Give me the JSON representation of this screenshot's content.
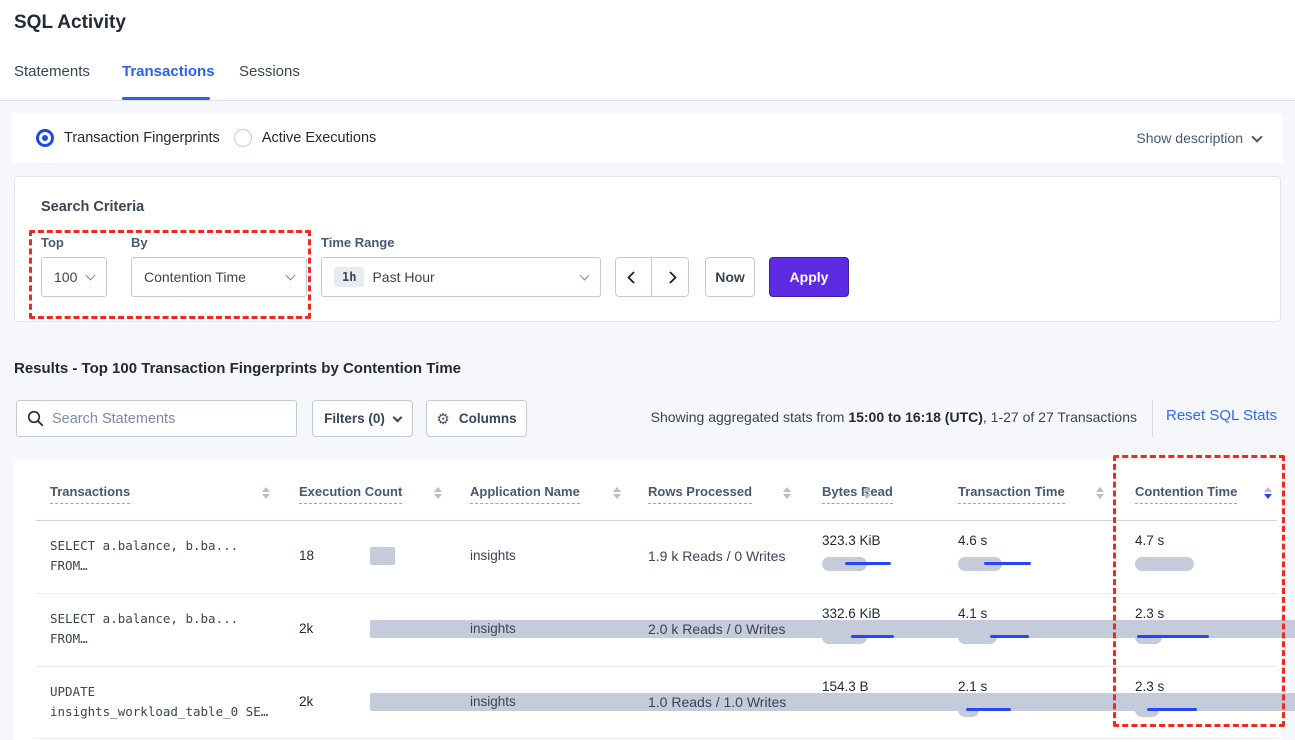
{
  "title": "SQL Activity",
  "tabs": {
    "statements": "Statements",
    "transactions": "Transactions",
    "sessions": "Sessions",
    "active": "Transactions"
  },
  "view_toggle": {
    "fingerprints": "Transaction Fingerprints",
    "active_executions": "Active Executions",
    "selected": "Transaction Fingerprints",
    "show_description": "Show description"
  },
  "search_criteria": {
    "heading": "Search Criteria",
    "top_label": "Top",
    "top_value": "100",
    "by_label": "By",
    "by_value": "Contention Time",
    "time_range_label": "Time Range",
    "time_badge": "1h",
    "time_value": "Past Hour",
    "now_label": "Now",
    "apply_label": "Apply"
  },
  "results": {
    "heading": "Results - Top 100 Transaction Fingerprints by Contention Time",
    "search_placeholder": "Search Statements",
    "filters_label": "Filters (0)",
    "columns_label": "Columns",
    "stats_prefix": "Showing aggregated stats from ",
    "stats_bold": "15:00 to 16:18 (UTC)",
    "stats_suffix": ", 1-27 of 27 Transactions",
    "reset_label": "Reset SQL Stats"
  },
  "table": {
    "columns": {
      "transactions": "Transactions",
      "execution_count": "Execution Count",
      "application_name": "Application Name",
      "rows_processed": "Rows Processed",
      "bytes_read": "Bytes Read",
      "transaction_time": "Transaction Time",
      "contention_time": "Contention Time"
    },
    "sorted_by": "Contention Time",
    "sort_direction": "desc",
    "rows": [
      {
        "sql_line1": "SELECT a.balance, b.ba...",
        "sql_line2": "FROM…",
        "execution_count": "18",
        "execution_bar_pct": 2,
        "application_name": "insights",
        "rows_processed": "1.9 k Reads / 0 Writes",
        "bytes_read": "323.3 KiB",
        "bytes_bar": {
          "bar_pct": 60,
          "line_left_pct": 30,
          "line_width_pct": 62
        },
        "transaction_time": "4.6 s",
        "transaction_bar": {
          "bar_pct": 58,
          "line_left_pct": 35,
          "line_width_pct": 62
        },
        "contention_time": "4.7 s",
        "contention_bar": {
          "bar_pct": 78,
          "line_left_pct": 0,
          "line_width_pct": 0
        }
      },
      {
        "sql_line1": "SELECT a.balance, b.ba...",
        "sql_line2": "FROM…",
        "execution_count": "2k",
        "execution_bar_pct": 100,
        "application_name": "insights",
        "rows_processed": "2.0 k Reads / 0 Writes",
        "bytes_read": "332.6 KiB",
        "bytes_bar": {
          "bar_pct": 60,
          "line_left_pct": 38,
          "line_width_pct": 58
        },
        "transaction_time": "4.1 s",
        "transaction_bar": {
          "bar_pct": 52,
          "line_left_pct": 42,
          "line_width_pct": 52
        },
        "contention_time": "2.3 s",
        "contention_bar": {
          "bar_pct": 36,
          "line_left_pct": 2,
          "line_width_pct": 96
        }
      },
      {
        "sql_line1": "UPDATE",
        "sql_line2": "insights_workload_table_0 SE…",
        "execution_count": "2k",
        "execution_bar_pct": 100,
        "application_name": "insights",
        "rows_processed": "1.0 Reads / 1.0 Writes",
        "bytes_read": "154.3 B",
        "bytes_bar": {
          "bar_pct": 0,
          "line_left_pct": 0,
          "line_width_pct": 0
        },
        "transaction_time": "2.1 s",
        "transaction_bar": {
          "bar_pct": 28,
          "line_left_pct": 10,
          "line_width_pct": 60
        },
        "contention_time": "2.3 s",
        "contention_bar": {
          "bar_pct": 32,
          "line_left_pct": 16,
          "line_width_pct": 66
        }
      }
    ]
  },
  "colors": {
    "accent_blue": "#2a62e8",
    "radio_blue": "#1d49e5",
    "apply_purple": "#5c2be2",
    "highlight_red": "#f1281c",
    "bar_gray": "#c6cbdb",
    "bar_blue": "#2249f5",
    "link_blue": "#2e6df2"
  }
}
